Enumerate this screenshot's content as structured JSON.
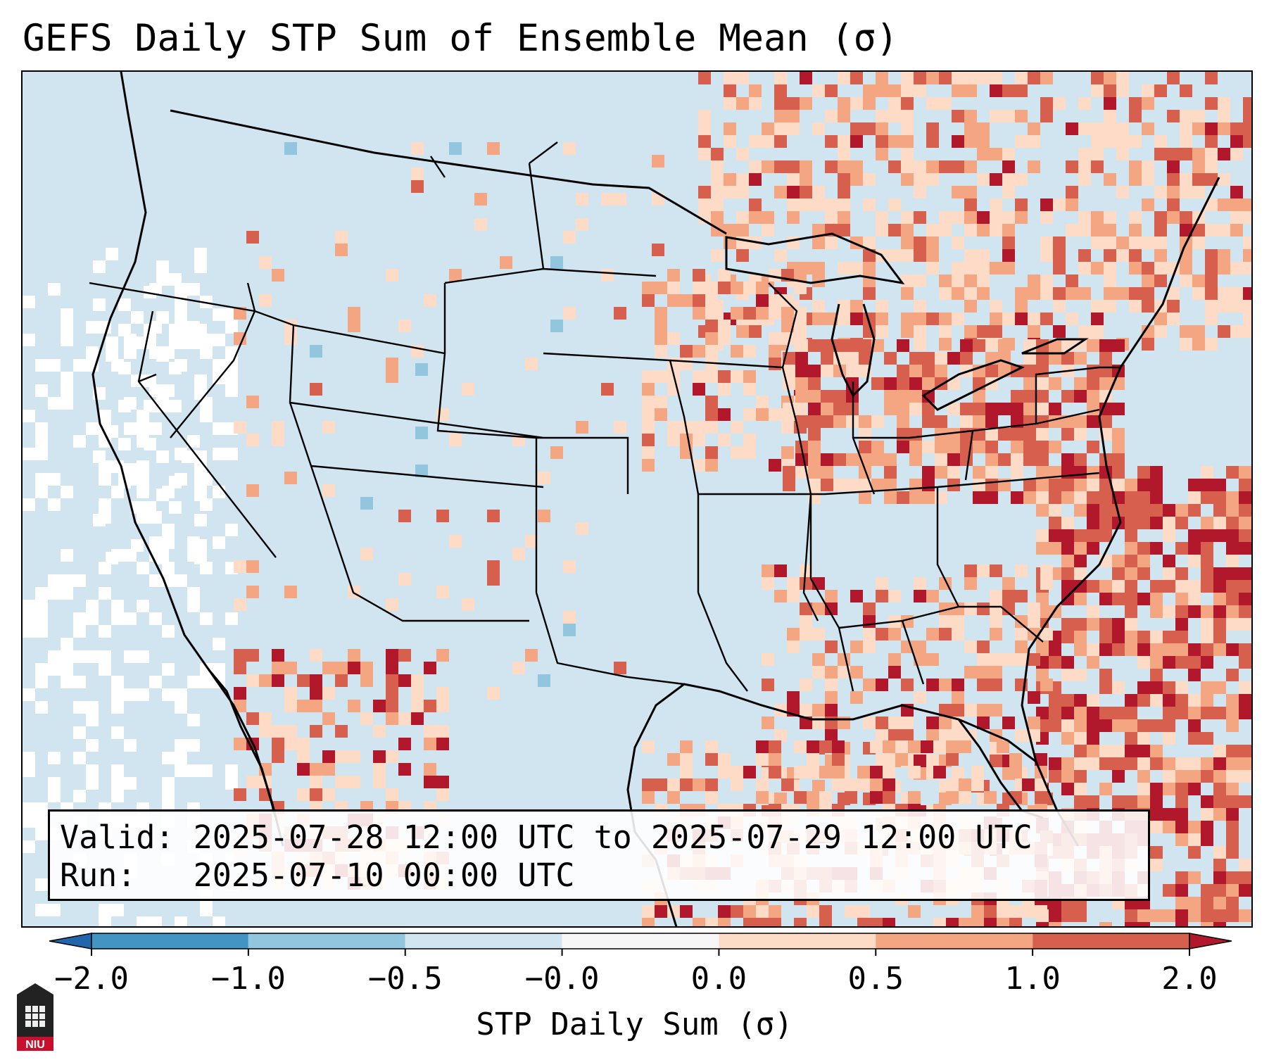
{
  "title": "GEFS Daily STP Sum of Ensemble Mean (σ)",
  "info": {
    "valid_label": "Valid:",
    "valid_value": "2025-07-28 12:00 UTC to 2025-07-29 12:00 UTC",
    "run_label": "Run:",
    "run_value": "2025-07-10 00:00 UTC"
  },
  "colorbar": {
    "label": "STP Daily Sum (σ)",
    "ticks": [
      "−2.0",
      "−1.0",
      "−0.5",
      "−0.0",
      "0.0",
      "0.5",
      "1.0",
      "2.0"
    ],
    "colors": [
      "#2166ac",
      "#4393c3",
      "#92c5de",
      "#d1e5f0",
      "#f7f7f7",
      "#fddbc7",
      "#f4a582",
      "#d6604d",
      "#b2182b"
    ]
  },
  "logo": {
    "text": "NIU"
  },
  "map": {
    "background_color": "#d1e5f0",
    "land_outline_color": "#000000",
    "regions": [
      {
        "name": "northeast-upper-midwest",
        "level": "positive"
      },
      {
        "name": "great-lakes-ohio-valley",
        "level": "strong-positive"
      },
      {
        "name": "atlantic-southeast",
        "level": "strong-positive"
      },
      {
        "name": "gulf-of-mexico",
        "level": "positive"
      },
      {
        "name": "mexico-southwest",
        "level": "positive"
      },
      {
        "name": "pacific-offshore",
        "level": "near-zero"
      },
      {
        "name": "wyoming-colorado",
        "level": "slight-negative"
      }
    ]
  }
}
